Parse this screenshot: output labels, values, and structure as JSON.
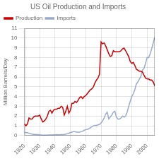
{
  "chart_data": {
    "type": "line",
    "title": "US Oil Production and Imports",
    "y_label": "Million Barrels/Day",
    "x": [
      1920,
      1921,
      1922,
      1923,
      1924,
      1925,
      1926,
      1927,
      1928,
      1929,
      1930,
      1931,
      1932,
      1933,
      1934,
      1935,
      1936,
      1937,
      1938,
      1939,
      1940,
      1941,
      1942,
      1943,
      1944,
      1945,
      1946,
      1947,
      1948,
      1949,
      1950,
      1951,
      1952,
      1953,
      1954,
      1955,
      1956,
      1957,
      1958,
      1959,
      1960,
      1961,
      1962,
      1963,
      1964,
      1965,
      1966,
      1967,
      1968,
      1969,
      1970,
      1971,
      1972,
      1973,
      1974,
      1975,
      1976,
      1977,
      1978,
      1979,
      1980,
      1981,
      1982,
      1983,
      1984,
      1985,
      1986,
      1987,
      1988,
      1989,
      1990,
      1991,
      1992,
      1993,
      1994,
      1995,
      1996,
      1997,
      1998,
      1999,
      2000,
      2001,
      2002,
      2003,
      2004,
      2005
    ],
    "series": [
      {
        "name": "Production",
        "color": "#cc0000",
        "values": [
          1.2,
          1.0,
          1.2,
          1.8,
          1.7,
          1.7,
          1.9,
          2.0,
          2.0,
          2.0,
          2.1,
          1.7,
          1.4,
          1.5,
          1.7,
          2.0,
          2.5,
          2.6,
          2.3,
          2.6,
          2.7,
          2.7,
          2.8,
          2.8,
          3.0,
          2.9,
          2.1,
          2.5,
          3.0,
          2.3,
          2.6,
          3.3,
          3.3,
          3.5,
          3.4,
          3.6,
          3.9,
          4.0,
          3.8,
          4.0,
          4.1,
          4.3,
          4.5,
          4.7,
          4.8,
          5.0,
          5.4,
          5.7,
          5.9,
          6.3,
          9.6,
          9.4,
          9.5,
          9.2,
          8.8,
          8.4,
          8.1,
          8.2,
          8.7,
          8.6,
          8.6,
          8.6,
          8.6,
          8.7,
          8.9,
          8.97,
          8.7,
          8.4,
          8.1,
          7.6,
          7.4,
          7.5,
          7.2,
          6.8,
          6.7,
          6.6,
          6.6,
          6.5,
          6.2,
          5.9,
          5.8,
          5.8,
          5.7,
          5.7,
          5.5,
          5.1
        ]
      },
      {
        "name": "Imports",
        "color": "#99aacc",
        "values": [
          0.35,
          0.3,
          0.3,
          0.25,
          0.2,
          0.15,
          0.12,
          0.12,
          0.1,
          0.1,
          0.08,
          0.06,
          0.05,
          0.05,
          0.05,
          0.05,
          0.06,
          0.07,
          0.06,
          0.06,
          0.08,
          0.1,
          0.08,
          0.09,
          0.1,
          0.1,
          0.12,
          0.15,
          0.2,
          0.25,
          0.3,
          0.35,
          0.4,
          0.4,
          0.35,
          0.35,
          0.35,
          0.4,
          0.45,
          0.55,
          0.6,
          0.65,
          0.7,
          0.8,
          0.9,
          1.0,
          1.05,
          1.05,
          1.1,
          1.15,
          1.3,
          1.5,
          1.8,
          2.2,
          2.4,
          1.7,
          1.9,
          2.1,
          2.4,
          2.5,
          1.9,
          1.7,
          1.7,
          1.8,
          2.0,
          1.9,
          2.0,
          2.4,
          3.0,
          3.5,
          4.0,
          4.3,
          4.7,
          5.3,
          5.5,
          5.8,
          6.1,
          6.7,
          6.9,
          7.4,
          8.0,
          8.0,
          8.4,
          8.9,
          9.5,
          10.1
        ]
      }
    ],
    "xlim": [
      1920,
      2005
    ],
    "xticks": [
      1920,
      1930,
      1940,
      1950,
      1960,
      1970,
      1980,
      1990,
      2000
    ],
    "ylim": [
      0,
      11
    ],
    "yticks": [
      0,
      1,
      2,
      3,
      4,
      5,
      6,
      7,
      8,
      9,
      10,
      11
    ],
    "grid": true,
    "legend": "upper left"
  }
}
